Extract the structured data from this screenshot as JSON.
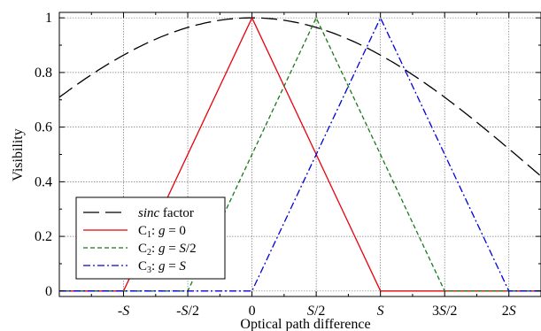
{
  "chart_data": {
    "type": "line",
    "title": "",
    "xlabel": "Optical path difference",
    "ylabel": "Visibility",
    "xlim": [
      -1.5,
      2.25
    ],
    "ylim": [
      -0.02,
      1.02
    ],
    "grid": true,
    "legend_placement": "lower-left",
    "x_ticks": [
      {
        "value": -1,
        "label": "-S"
      },
      {
        "value": -0.5,
        "label": "-S/2"
      },
      {
        "value": 0,
        "label": "0"
      },
      {
        "value": 0.5,
        "label": "S/2"
      },
      {
        "value": 1,
        "label": "S"
      },
      {
        "value": 1.5,
        "label": "3S/2"
      },
      {
        "value": 2,
        "label": "2S"
      }
    ],
    "y_ticks": [
      {
        "value": 0,
        "label": "0"
      },
      {
        "value": 0.2,
        "label": "0.2"
      },
      {
        "value": 0.4,
        "label": "0.4"
      },
      {
        "value": 0.6,
        "label": "0.6"
      },
      {
        "value": 0.8,
        "label": "0.8"
      },
      {
        "value": 1,
        "label": "1"
      }
    ],
    "series": [
      {
        "name": "sinc factor",
        "color": "#000000",
        "dash": "long-dash",
        "formula": "sinc",
        "x": [
          -1.5,
          -1.25,
          -1.0,
          -0.75,
          -0.5,
          -0.25,
          0.0,
          0.25,
          0.5,
          0.75,
          1.0,
          1.25,
          1.5,
          1.75,
          2.0,
          2.25
        ],
        "values": [
          0.76,
          0.825,
          0.88,
          0.93,
          0.96,
          0.99,
          1.0,
          0.99,
          0.96,
          0.93,
          0.88,
          0.79,
          0.67,
          0.57,
          0.48,
          0.39
        ]
      },
      {
        "name": "C₁: g = 0",
        "color": "#e8000b",
        "dash": "solid",
        "x": [
          -1.5,
          -1.0,
          0.0,
          1.0,
          2.25
        ],
        "values": [
          0,
          0,
          1,
          0,
          0
        ]
      },
      {
        "name": "C₂: g = S/2",
        "color": "#1a7a1a",
        "dash": "dashed",
        "x": [
          -1.5,
          -0.5,
          0.5,
          1.5,
          2.25
        ],
        "values": [
          0,
          0,
          1,
          0,
          0
        ]
      },
      {
        "name": "C₃: g = S",
        "color": "#0000dd",
        "dash": "dash-dot",
        "x": [
          -1.5,
          0.0,
          1.0,
          2.0,
          2.25
        ],
        "values": [
          0,
          0,
          1,
          0,
          0
        ]
      }
    ],
    "legend": [
      {
        "prefix": "",
        "italic": "sinc",
        "suffix": " factor"
      },
      {
        "prefix": "C",
        "sub": "1",
        "mid": ": ",
        "italic": "g",
        "suffix": " = 0"
      },
      {
        "prefix": "C",
        "sub": "2",
        "mid": ": ",
        "italic": "g",
        "suffix": " = ",
        "italic2": "S",
        "suffix2": "/2"
      },
      {
        "prefix": "C",
        "sub": "3",
        "mid": ": ",
        "italic": "g",
        "suffix": " = ",
        "italic2": "S",
        "suffix2": ""
      }
    ]
  }
}
